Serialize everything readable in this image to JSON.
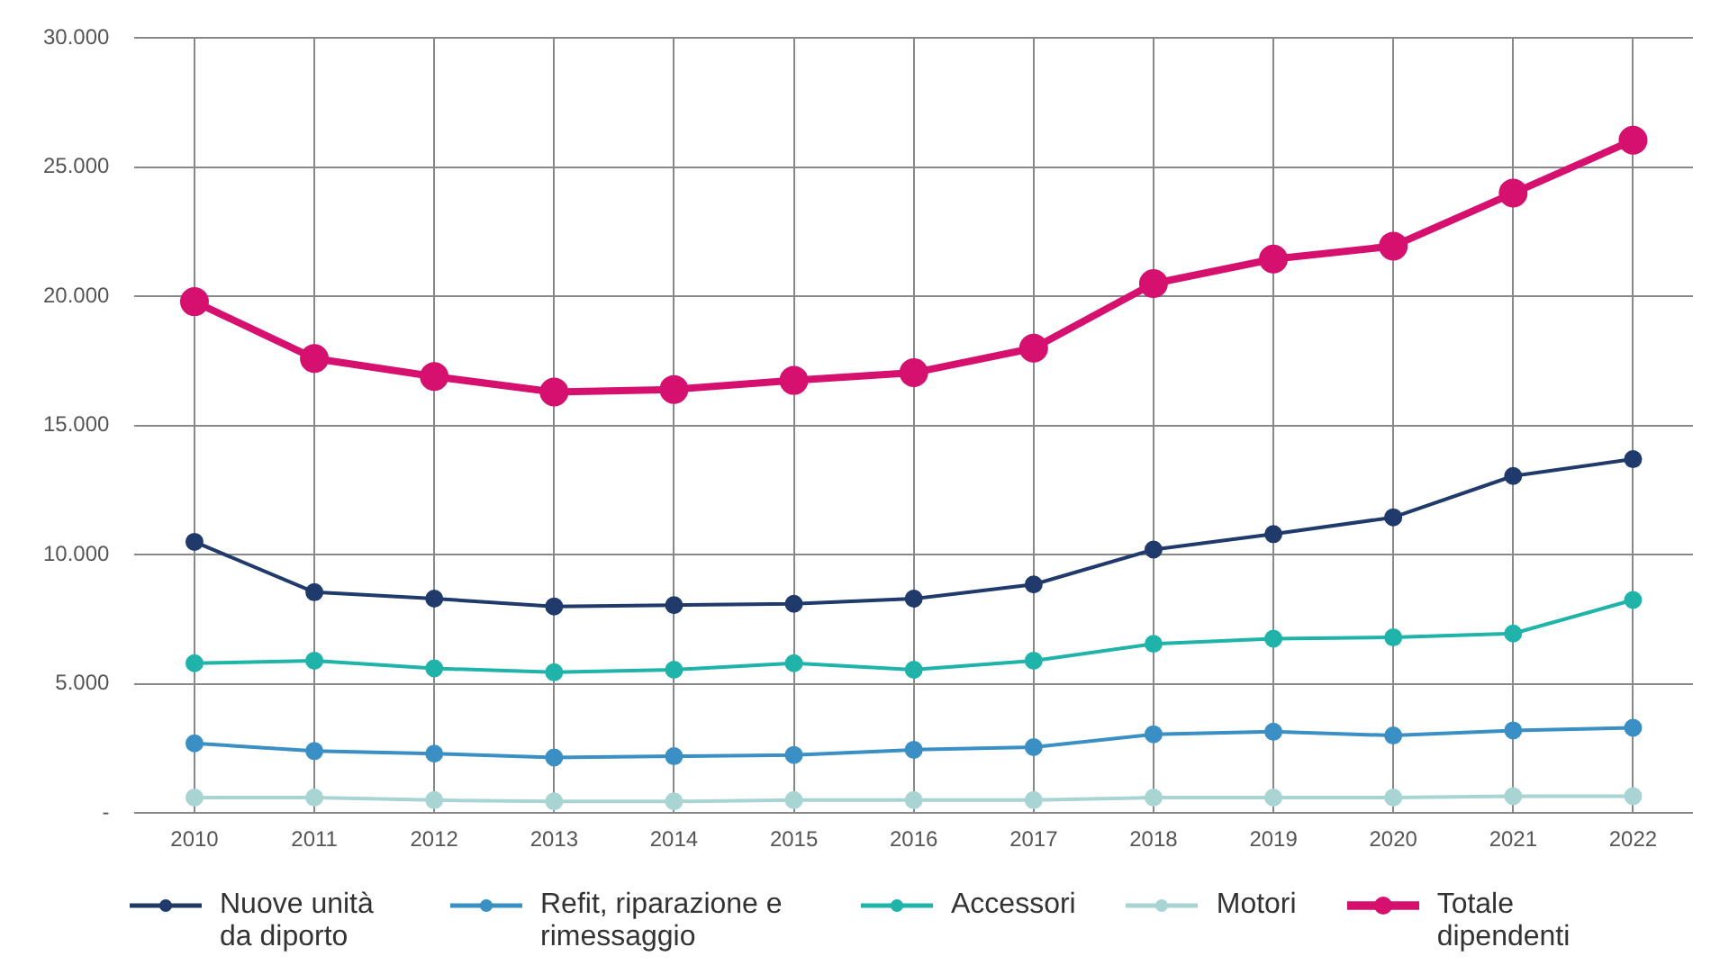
{
  "chart_data": {
    "type": "line",
    "categories": [
      "2010",
      "2011",
      "2012",
      "2013",
      "2014",
      "2015",
      "2016",
      "2017",
      "2018",
      "2019",
      "2020",
      "2021",
      "2022"
    ],
    "series": [
      {
        "name": "Nuove unità da diporto",
        "color": "#1f3a6b",
        "values": [
          10500,
          8550,
          8300,
          8000,
          8050,
          8100,
          8300,
          8850,
          10200,
          10800,
          11450,
          13050,
          13700
        ]
      },
      {
        "name": "Refit, riparazione e rimessaggio",
        "color": "#3a8fc4",
        "values": [
          2700,
          2400,
          2300,
          2150,
          2200,
          2250,
          2450,
          2550,
          3050,
          3150,
          3000,
          3200,
          3300
        ]
      },
      {
        "name": "Accessori",
        "color": "#1fb3aa",
        "values": [
          5800,
          5900,
          5600,
          5450,
          5550,
          5800,
          5550,
          5900,
          6550,
          6750,
          6800,
          6950,
          8250
        ]
      },
      {
        "name": "Motori",
        "color": "#a8d4d4",
        "values": [
          600,
          600,
          500,
          450,
          450,
          500,
          500,
          500,
          600,
          600,
          600,
          650,
          650
        ]
      },
      {
        "name": "Totale dipendenti",
        "color": "#d6106e",
        "values": [
          19800,
          17600,
          16900,
          16300,
          16400,
          16750,
          17050,
          18000,
          20500,
          21450,
          21950,
          24000,
          26050
        ]
      }
    ],
    "ylim": [
      0,
      30000
    ],
    "yticks": [
      {
        "value": 0,
        "label": "-"
      },
      {
        "value": 5000,
        "label": "5.000"
      },
      {
        "value": 10000,
        "label": "10.000"
      },
      {
        "value": 15000,
        "label": "15.000"
      },
      {
        "value": 20000,
        "label": "20.000"
      },
      {
        "value": 25000,
        "label": "25.000"
      },
      {
        "value": 30000,
        "label": "30.000"
      }
    ],
    "grid": true,
    "legend": "bottom",
    "marker": "circle",
    "line_style": "solid"
  }
}
